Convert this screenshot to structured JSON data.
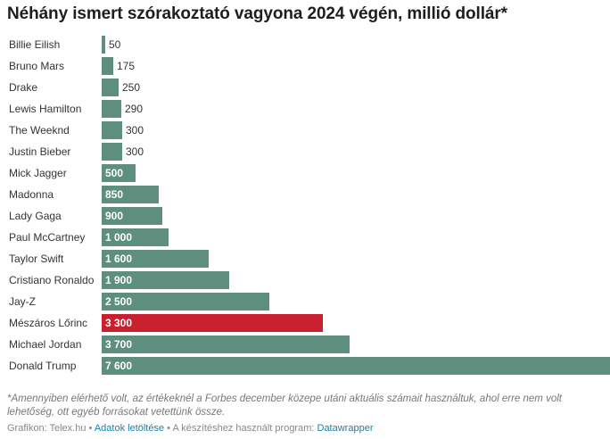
{
  "chart_data": {
    "type": "bar",
    "orientation": "horizontal",
    "title": "Néhány ismert szórakoztató vagyona 2024 végén, millió dollár*",
    "categories": [
      "Billie Eilish",
      "Bruno Mars",
      "Drake",
      "Lewis Hamilton",
      "The Weeknd",
      "Justin Bieber",
      "Mick Jagger",
      "Madonna",
      "Lady Gaga",
      "Paul McCartney",
      "Taylor Swift",
      "Cristiano Ronaldo",
      "Jay-Z",
      "Mészáros Lőrinc",
      "Michael Jordan",
      "Donald Trump"
    ],
    "values": [
      50,
      175,
      250,
      290,
      300,
      300,
      500,
      850,
      900,
      1000,
      1600,
      1900,
      2500,
      3300,
      3700,
      7600
    ],
    "value_labels": [
      "50",
      "175",
      "250",
      "290",
      "300",
      "300",
      "500",
      "850",
      "900",
      "1 000",
      "1 600",
      "1 900",
      "2 500",
      "3 300",
      "3 700",
      "7 600"
    ],
    "xlim": [
      0,
      7600
    ],
    "grid": false,
    "colors": {
      "default": "#5e8f7e",
      "highlight": "#c8202f"
    },
    "highlight_category": "Mészáros Lőrinc"
  },
  "note": "*Amennyiben elérhető volt, az értékeknél a Forbes december közepe utáni aktuális számait használtuk, ahol erre nem volt lehetőség, ott egyéb forrásokat vetettünk össze.",
  "footer": {
    "source_label": "Grafikon: Telex.hu",
    "separator": " • ",
    "download_link": "Adatok letöltése",
    "tool_text": "A készítéshez használt program: ",
    "tool_link": "Datawrapper"
  }
}
